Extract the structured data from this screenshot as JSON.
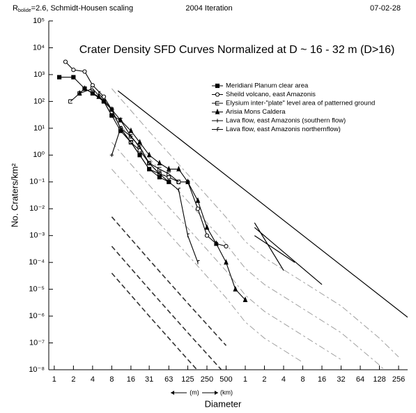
{
  "chart_data": {
    "type": "line",
    "header_left": {
      "symbol": "R",
      "subscript": "bolide",
      "text": "=2.6, Schmidt-Housen scaling"
    },
    "header_center": "2004 Iteration",
    "header_right": "07-02-28",
    "title": "Crater Density SFD Curves Normalized at D ~ 16 - 32 m (D>16)",
    "y_label": "No. Craters/km²",
    "x_label": "Diameter",
    "x_units": [
      "(m)",
      "(km)"
    ],
    "log_x": true,
    "log_y": true,
    "xlim": [
      0.82,
      355000
    ],
    "ylim": [
      1e-08,
      100000
    ],
    "xticks": [
      1,
      2,
      4,
      8,
      16,
      31,
      63,
      125,
      250,
      500,
      {
        "value": 1000,
        "label": "1"
      },
      {
        "value": 2000,
        "label": "2"
      },
      {
        "value": 4000,
        "label": "4"
      },
      {
        "value": 8000,
        "label": "8"
      },
      {
        "value": 16000,
        "label": "16"
      },
      {
        "value": 32000,
        "label": "32"
      },
      {
        "value": 64000,
        "label": "64"
      },
      {
        "value": 128000,
        "label": "128"
      },
      {
        "value": 256000,
        "label": "256"
      }
    ],
    "yticks": [
      {
        "value": 100000,
        "label": "10⁵"
      },
      {
        "value": 10000,
        "label": "10⁴"
      },
      {
        "value": 1000,
        "label": "10³"
      },
      {
        "value": 100,
        "label": "10²"
      },
      {
        "value": 10,
        "label": "10¹"
      },
      {
        "value": 1,
        "label": "10⁰"
      },
      {
        "value": 0.1,
        "label": "10⁻¹"
      },
      {
        "value": 0.01,
        "label": "10⁻²"
      },
      {
        "value": 0.001,
        "label": "10⁻³"
      },
      {
        "value": 0.0001,
        "label": "10⁻⁴"
      },
      {
        "value": 1e-05,
        "label": "10⁻⁵"
      },
      {
        "value": 1e-06,
        "label": "10⁻⁶"
      },
      {
        "value": 1e-07,
        "label": "10⁻⁷"
      },
      {
        "value": 1e-08,
        "label": "10⁻⁸"
      }
    ],
    "series": [
      {
        "name": "Meridiani Planum clear area",
        "color": "#000000",
        "marker": "square",
        "x": [
          1.2,
          2,
          3,
          4,
          6,
          8,
          11,
          16,
          22,
          31,
          45,
          63
        ],
        "values": [
          800,
          800,
          300,
          200,
          100,
          30,
          8,
          3,
          1,
          0.3,
          0.15,
          0.1
        ]
      },
      {
        "name": "Sheild volcano, east Amazonis",
        "color": "#000000",
        "marker": "circle",
        "x": [
          1.5,
          2,
          3,
          4,
          6,
          8,
          11,
          16,
          22,
          31,
          45,
          63,
          90,
          125,
          180,
          250,
          350,
          500
        ],
        "values": [
          3000,
          1500,
          1300,
          400,
          150,
          50,
          10,
          3,
          1.5,
          0.5,
          0.2,
          0.15,
          0.1,
          0.1,
          0.01,
          0.001,
          0.0005,
          0.0004
        ]
      },
      {
        "name": "Elysium inter-\"plate\" level area of patterned ground",
        "color": "#000000",
        "marker": "bar",
        "x": [
          1.8,
          2.5,
          4,
          6,
          8,
          11,
          16,
          22,
          31,
          45,
          63,
          90
        ],
        "values": [
          100,
          200,
          300,
          100,
          30,
          20,
          5,
          2,
          0.5,
          0.3,
          0.2,
          0.1
        ]
      },
      {
        "name": "Arisia Mons Caldera",
        "color": "#000000",
        "marker": "triangle",
        "x": [
          2.5,
          3,
          5,
          8,
          11,
          16,
          22,
          31,
          45,
          63,
          90,
          125,
          180,
          250,
          350,
          500,
          700,
          1000
        ],
        "values": [
          200,
          300,
          150,
          50,
          20,
          8,
          3,
          1,
          0.5,
          0.3,
          0.3,
          0.1,
          0.02,
          0.002,
          0.0005,
          0.0001,
          1e-05,
          4e-06
        ]
      },
      {
        "name": "Lava flow, east Amazonis (southern flow)",
        "color": "#000000",
        "marker": "plus",
        "x": [
          8,
          11,
          16,
          22,
          31,
          45
        ],
        "values": [
          1,
          10,
          5,
          2,
          0.5,
          0.2
        ]
      },
      {
        "name": "Lava flow, east Amazonis northernflow)",
        "color": "#000000",
        "marker": "tick",
        "x": [
          5,
          8,
          11,
          16,
          22,
          31,
          45,
          63,
          90,
          125,
          180
        ],
        "values": [
          200,
          50,
          10,
          3,
          1,
          0.3,
          0.2,
          0.1,
          0.05,
          0.001,
          0.0001
        ]
      }
    ],
    "saturation": {
      "color": "#000000",
      "x": [
        10,
        355000
      ],
      "values": [
        250,
        9e-07
      ]
    },
    "segments": [
      {
        "color": "#000000",
        "x": [
          1400,
          4000
        ],
        "values": [
          0.003,
          5e-05
        ]
      },
      {
        "color": "#000000",
        "x": [
          1400,
          16000
        ],
        "values": [
          0.002,
          1.5e-05
        ]
      },
      {
        "color": "#000000",
        "x": [
          1400,
          6000
        ],
        "values": [
          0.001,
          0.0001
        ]
      }
    ],
    "isochrons": [
      {
        "color": "#a0a0a0",
        "x": [
          8,
          31,
          125,
          500,
          1000,
          2000,
          8000,
          32000,
          128000,
          256000
        ],
        "values": [
          300,
          7.6,
          0.19,
          0.0048,
          0.0006,
          0.00015,
          1.9e-05,
          2.4e-06,
          1.5e-07,
          3e-08
        ]
      },
      {
        "color": "#a0a0a0",
        "x": [
          8,
          31,
          125,
          500,
          1000,
          2000,
          8000,
          32000,
          128000,
          256000
        ],
        "values": [
          30,
          0.76,
          0.019,
          0.00048,
          6e-05,
          1.5e-05,
          1.9e-06,
          2.4e-07,
          1.5e-08,
          3e-09
        ]
      },
      {
        "color": "#a0a0a0",
        "x": [
          8,
          31,
          125,
          500,
          1000,
          2000,
          8000,
          32000
        ],
        "values": [
          3,
          0.076,
          0.0019,
          4.8e-05,
          6e-06,
          1.5e-06,
          1.9e-07,
          2.4e-08
        ]
      },
      {
        "color": "#a0a0a0",
        "x": [
          8,
          31,
          125,
          500,
          1000,
          2000,
          8000
        ],
        "values": [
          0.3,
          0.0076,
          0.00019,
          4.8e-06,
          6e-07,
          1.5e-07,
          1.9e-08
        ]
      },
      {
        "color": "#333333",
        "x": [
          8,
          31,
          125,
          500
        ],
        "values": [
          0.005,
          0.000125,
          3e-06,
          8e-08
        ]
      },
      {
        "color": "#333333",
        "x": [
          8,
          31,
          125,
          500
        ],
        "values": [
          0.0004,
          1e-05,
          2.4e-07,
          6.4e-09
        ]
      },
      {
        "color": "#333333",
        "x": [
          8,
          31,
          125,
          500
        ],
        "values": [
          4e-05,
          1e-06,
          2.4e-08,
          6.4e-10
        ]
      }
    ]
  }
}
